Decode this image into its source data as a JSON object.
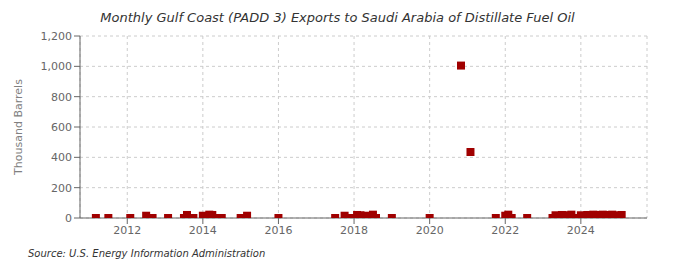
{
  "chart_data": {
    "type": "scatter",
    "title": "Monthly Gulf Coast (PADD 3) Exports to Saudi Arabia of Distillate Fuel Oil",
    "ylabel": "Thousand Barrels",
    "annotations": [
      "Source: U.S. Energy Information Administration"
    ],
    "color": "#a00000",
    "marker": "square",
    "grid": true,
    "xlim": [
      2010.75,
      2025.75
    ],
    "xticks": [
      2012,
      2014,
      2016,
      2018,
      2020,
      2022,
      2024
    ],
    "ylim": [
      0,
      1200
    ],
    "yticks": [
      0,
      200,
      400,
      600,
      800,
      {
        "value": 1000,
        "label": "1,000"
      },
      {
        "value": 1200,
        "label": "1,200"
      }
    ],
    "x": [
      2011.17,
      2011.5,
      2012.08,
      2012.5,
      2012.67,
      2013.08,
      2013.5,
      2013.58,
      2013.75,
      2014.0,
      2014.08,
      2014.17,
      2014.25,
      2014.33,
      2014.5,
      2015.0,
      2015.17,
      2016.0,
      2017.5,
      2017.75,
      2017.83,
      2018.0,
      2018.08,
      2018.17,
      2018.25,
      2018.33,
      2018.5,
      2018.58,
      2019.0,
      2020.0,
      2020.83,
      2021.08,
      2021.75,
      2022.0,
      2022.08,
      2022.17,
      2022.58,
      2023.25,
      2023.33,
      2023.42,
      2023.5,
      2023.58,
      2023.67,
      2023.75,
      2023.83,
      2024.0,
      2024.08,
      2024.17,
      2024.25,
      2024.33,
      2024.42,
      2024.5,
      2024.58,
      2024.67,
      2024.75,
      2024.83,
      2025.0,
      2025.08
    ],
    "values": [
      0,
      0,
      0,
      15,
      0,
      0,
      0,
      20,
      0,
      15,
      0,
      22,
      20,
      0,
      0,
      0,
      15,
      0,
      0,
      15,
      0,
      0,
      20,
      18,
      0,
      15,
      22,
      0,
      0,
      0,
      1005,
      435,
      0,
      15,
      22,
      0,
      0,
      0,
      18,
      0,
      20,
      15,
      18,
      22,
      0,
      18,
      0,
      20,
      18,
      22,
      20,
      18,
      22,
      20,
      18,
      22,
      18,
      20
    ]
  }
}
